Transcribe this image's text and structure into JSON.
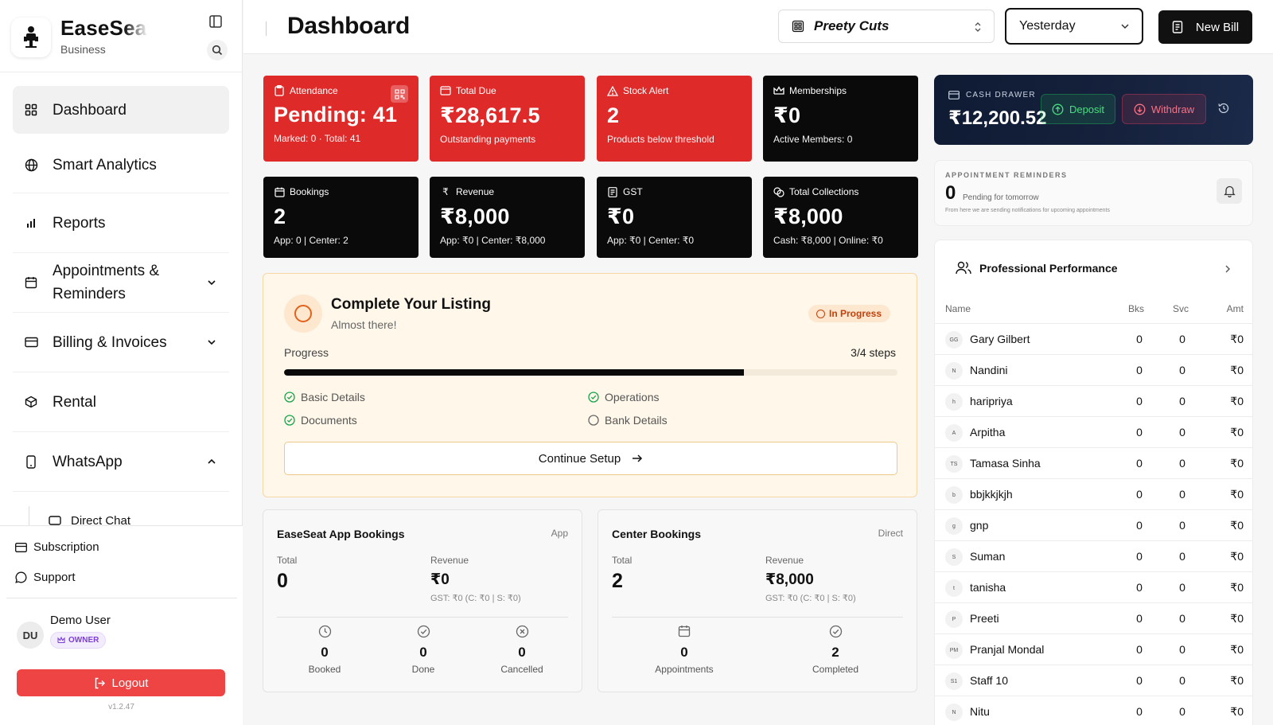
{
  "brand": {
    "name": "EaseSeat",
    "subtitle": "Business"
  },
  "sidebar": {
    "items": [
      {
        "label": "Dashboard",
        "icon": "dashboard-grid-icon"
      },
      {
        "label": "Smart Analytics",
        "icon": "globe-icon"
      },
      {
        "label": "Reports",
        "icon": "bar-chart-icon"
      },
      {
        "label": "Appointments &\nReminders",
        "icon": "calendar-icon"
      },
      {
        "label": "Billing & Invoices",
        "icon": "credit-card-icon"
      },
      {
        "label": "Rental",
        "icon": "package-icon"
      },
      {
        "label": "WhatsApp",
        "icon": "phone-icon"
      }
    ],
    "sub_item": "Direct Chat",
    "subscription": "Subscription",
    "support": "Support",
    "user": {
      "initials": "DU",
      "name": "Demo User",
      "role": "OWNER"
    },
    "logout": "Logout",
    "version": "v1.2.47"
  },
  "header": {
    "title": "Dashboard",
    "shop": "Preety Cuts",
    "date_range": "Yesterday",
    "new_bill": "New Bill"
  },
  "stats": [
    {
      "title": "Attendance",
      "value": "Pending: 41",
      "sub": "Marked: 0 · Total: 41",
      "theme": "red"
    },
    {
      "title": "Total Due",
      "value": "₹28,617.5",
      "sub": "Outstanding payments",
      "theme": "red"
    },
    {
      "title": "Stock Alert",
      "value": "2",
      "sub": "Products below threshold",
      "theme": "red"
    },
    {
      "title": "Memberships",
      "value": "₹0",
      "sub": "Active Members: 0",
      "theme": "black"
    },
    {
      "title": "Bookings",
      "value": "2",
      "sub": "App: 0 | Center: 2",
      "theme": "black"
    },
    {
      "title": "Revenue",
      "value": "₹8,000",
      "sub": "App: ₹0 | Center: ₹8,000",
      "theme": "black"
    },
    {
      "title": "GST",
      "value": "₹0",
      "sub": "App: ₹0 | Center: ₹0",
      "theme": "black"
    },
    {
      "title": "Total Collections",
      "value": "₹8,000",
      "sub": "Cash: ₹8,000 | Online: ₹0",
      "theme": "black"
    }
  ],
  "listing": {
    "title": "Complete Your Listing",
    "subtitle": "Almost there!",
    "status": "In Progress",
    "progress_label": "Progress",
    "steps_label": "3/4 steps",
    "progress_fraction": 0.75,
    "steps": [
      {
        "label": "Basic Details",
        "done": true
      },
      {
        "label": "Operations",
        "done": true
      },
      {
        "label": "Documents",
        "done": true
      },
      {
        "label": "Bank Details",
        "done": false
      }
    ],
    "cta": "Continue Setup"
  },
  "app_bookings": {
    "title": "EaseSeat App Bookings",
    "tag": "App",
    "total_label": "Total",
    "total": "0",
    "revenue_label": "Revenue",
    "revenue": "₹0",
    "gst": "GST: ₹0 (C: ₹0 | S: ₹0)",
    "stats": [
      {
        "value": "0",
        "label": "Booked"
      },
      {
        "value": "0",
        "label": "Done"
      },
      {
        "value": "0",
        "label": "Cancelled"
      }
    ]
  },
  "center_bookings": {
    "title": "Center Bookings",
    "tag": "Direct",
    "total_label": "Total",
    "total": "2",
    "revenue_label": "Revenue",
    "revenue": "₹8,000",
    "gst": "GST: ₹0 (C: ₹0 | S: ₹0)",
    "stats": [
      {
        "value": "0",
        "label": "Appointments"
      },
      {
        "value": "2",
        "label": "Completed"
      }
    ]
  },
  "cash_drawer": {
    "label": "CASH DRAWER",
    "amount": "₹12,200.52",
    "deposit": "Deposit",
    "withdraw": "Withdraw"
  },
  "reminders": {
    "label": "APPOINTMENT REMINDERS",
    "count": "0",
    "text": "Pending for tomorrow",
    "note": "From here we are sending notifications for upcoming appointments"
  },
  "performance": {
    "title": "Professional Performance",
    "columns": [
      "Name",
      "Bks",
      "Svc",
      "Amt"
    ],
    "rows": [
      {
        "ini": "GG",
        "name": "Gary Gilbert",
        "bks": "0",
        "svc": "0",
        "amt": "₹0"
      },
      {
        "ini": "N",
        "name": "Nandini",
        "bks": "0",
        "svc": "0",
        "amt": "₹0"
      },
      {
        "ini": "h",
        "name": "haripriya",
        "bks": "0",
        "svc": "0",
        "amt": "₹0"
      },
      {
        "ini": "A",
        "name": "Arpitha",
        "bks": "0",
        "svc": "0",
        "amt": "₹0"
      },
      {
        "ini": "TS",
        "name": "Tamasa Sinha",
        "bks": "0",
        "svc": "0",
        "amt": "₹0"
      },
      {
        "ini": "b",
        "name": "bbjkkjkjh",
        "bks": "0",
        "svc": "0",
        "amt": "₹0"
      },
      {
        "ini": "g",
        "name": "gnp",
        "bks": "0",
        "svc": "0",
        "amt": "₹0"
      },
      {
        "ini": "S",
        "name": "Suman",
        "bks": "0",
        "svc": "0",
        "amt": "₹0"
      },
      {
        "ini": "t",
        "name": "tanisha",
        "bks": "0",
        "svc": "0",
        "amt": "₹0"
      },
      {
        "ini": "P",
        "name": "Preeti",
        "bks": "0",
        "svc": "0",
        "amt": "₹0"
      },
      {
        "ini": "PM",
        "name": "Pranjal Mondal",
        "bks": "0",
        "svc": "0",
        "amt": "₹0"
      },
      {
        "ini": "S1",
        "name": "Staff 10",
        "bks": "0",
        "svc": "0",
        "amt": "₹0"
      },
      {
        "ini": "N",
        "name": "Nitu",
        "bks": "0",
        "svc": "0",
        "amt": "₹0"
      }
    ]
  },
  "colors": {
    "red": "#df2a2a",
    "black": "#0a0a0a",
    "accent_orange": "#e2621b",
    "logout": "#ef4444"
  }
}
